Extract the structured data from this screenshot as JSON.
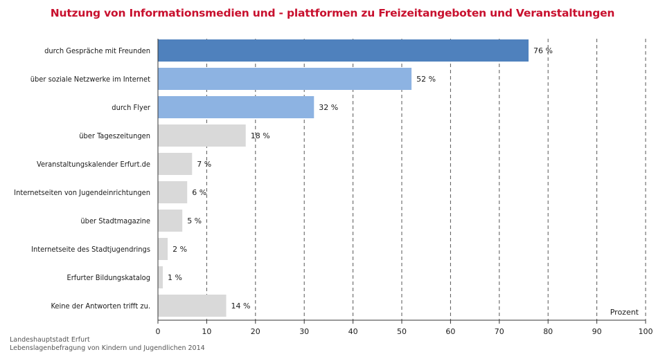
{
  "chart_data": {
    "type": "bar",
    "orientation": "horizontal",
    "title": "Nutzung von Informationsmedien und - plattformen zu Freizeitangeboten und Veranstaltungen",
    "categories": [
      "durch Gespräche mit Freunden",
      "über soziale Netzwerke im Internet",
      "durch Flyer",
      "über Tageszeitungen",
      "Veranstaltungskalender Erfurt.de",
      "Internetseiten von Jugendeinrichtungen",
      "über Stadtmagazine",
      "Internetseite des Stadtjugendrings",
      "Erfurter Bildungskatalog",
      "Keine der Antworten trifft zu."
    ],
    "values": [
      76,
      52,
      32,
      18,
      7,
      6,
      5,
      2,
      1,
      14
    ],
    "value_labels": [
      "76 %",
      "52 %",
      "32 %",
      "18 %",
      "7 %",
      "6 %",
      "5 %",
      "2 %",
      "1 %",
      "14 %"
    ],
    "bar_colors": [
      "#4f81bd",
      "#8db3e2",
      "#8db3e2",
      "#d9d9d9",
      "#d9d9d9",
      "#d9d9d9",
      "#d9d9d9",
      "#d9d9d9",
      "#d9d9d9",
      "#d9d9d9"
    ],
    "xlabel": "Prozent",
    "xlim": [
      0,
      100
    ],
    "xticks": [
      0,
      10,
      20,
      30,
      40,
      50,
      60,
      70,
      80,
      90,
      100
    ],
    "grid": "vertical dashed"
  },
  "source": {
    "line1": "Landeshauptstadt Erfurt",
    "line2": "Lebenslagenbefragung von Kindern und Jugendlichen 2014"
  },
  "colors": {
    "title": "#c8102e",
    "grid": "#555555",
    "axis": "#333333"
  }
}
